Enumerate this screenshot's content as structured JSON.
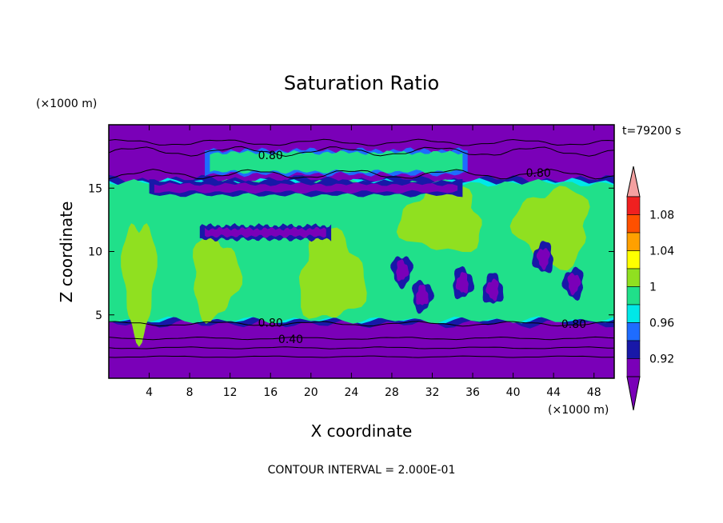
{
  "chart_data": {
    "type": "heatmap",
    "title": "Saturation Ratio",
    "xlabel": "X coordinate",
    "ylabel": "Z coordinate",
    "x_units": "(×1000 m)",
    "y_units": "(×1000 m)",
    "time_label": "t=79200 s",
    "footer": "CONTOUR INTERVAL = 2.000E-01",
    "xlim": [
      0,
      50
    ],
    "ylim": [
      0,
      20
    ],
    "x_ticks": [
      4,
      8,
      12,
      16,
      20,
      24,
      28,
      32,
      36,
      40,
      44,
      48
    ],
    "y_ticks": [
      5,
      10,
      15
    ],
    "grid": false,
    "colorbar": {
      "levels": [
        0.9,
        0.92,
        0.94,
        0.96,
        0.98,
        1.0,
        1.02,
        1.04,
        1.06,
        1.08,
        1.1
      ],
      "tick_labels": [
        "0.92",
        "0.96",
        "1",
        "1.04",
        "1.08"
      ],
      "tick_values": [
        0.92,
        0.96,
        1.0,
        1.04,
        1.08
      ],
      "colors": [
        "#7a00b8",
        "#1818a8",
        "#1e6cff",
        "#00e8e8",
        "#20e08a",
        "#90e020",
        "#ffff00",
        "#ffa000",
        "#ff5000",
        "#f02020"
      ],
      "under_color": "#7a00b8",
      "over_color": "#f4a0a0"
    },
    "contour_labels": [
      {
        "text": "0.80",
        "x": 16,
        "z": 17.6
      },
      {
        "text": "0.80",
        "x": 42.5,
        "z": 16.2
      },
      {
        "text": "0.80",
        "x": 16,
        "z": 4.4
      },
      {
        "text": "0.80",
        "x": 46,
        "z": 4.3
      },
      {
        "text": "0.40",
        "x": 18,
        "z": 3.1
      }
    ],
    "regions": {
      "background_color": "#7a00b8",
      "upper_cloud_band": {
        "z_range": [
          16.3,
          17.8
        ],
        "x_range": [
          10,
          35
        ],
        "color": "#20e08a"
      },
      "main_moist_layer": {
        "z_range": [
          4.5,
          15.5
        ],
        "x_range": [
          0,
          50
        ],
        "color": "#20e08a"
      },
      "supersat_patches": [
        {
          "x_center": 3,
          "z_center": 8,
          "color": "#90e020"
        },
        {
          "x_center": 10.5,
          "z_center": 8,
          "color": "#90e020"
        },
        {
          "x_center": 22,
          "z_center": 8,
          "color": "#90e020"
        },
        {
          "x_center": 33,
          "z_center": 12.5,
          "color": "#90e020"
        },
        {
          "x_center": 44,
          "z_center": 12,
          "color": "#90e020"
        }
      ],
      "dry_bands": [
        {
          "z_center": 11.5,
          "x_range": [
            9,
            22
          ]
        },
        {
          "z_center": 15,
          "x_range": [
            4,
            35
          ]
        }
      ]
    }
  }
}
